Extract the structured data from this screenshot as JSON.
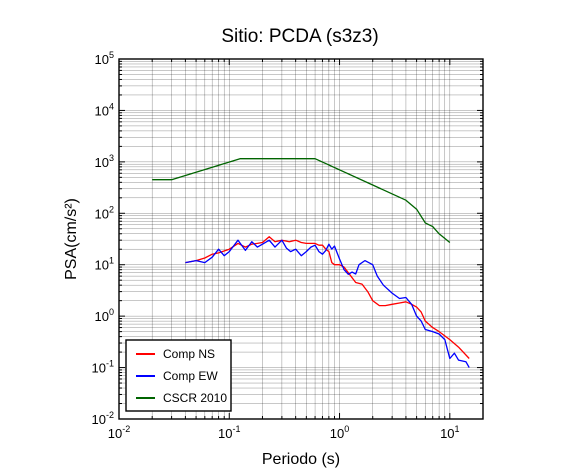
{
  "chart_data": {
    "type": "line",
    "title": "Sitio: PCDA (s3z3)",
    "xlabel": "Periodo (s)",
    "ylabel": "PSA(cm/s²)",
    "xscale": "log",
    "yscale": "log",
    "xlim": [
      0.01,
      20
    ],
    "ylim": [
      0.01,
      100000
    ],
    "grid": true,
    "legend_position": "bottom-left",
    "x_ticks": [
      {
        "base": "10",
        "exp": "-2"
      },
      {
        "base": "10",
        "exp": "-1"
      },
      {
        "base": "10",
        "exp": "0"
      },
      {
        "base": "10",
        "exp": "1"
      }
    ],
    "y_ticks": [
      {
        "base": "10",
        "exp": "-2"
      },
      {
        "base": "10",
        "exp": "-1"
      },
      {
        "base": "10",
        "exp": "0"
      },
      {
        "base": "10",
        "exp": "1"
      },
      {
        "base": "10",
        "exp": "2"
      },
      {
        "base": "10",
        "exp": "3"
      },
      {
        "base": "10",
        "exp": "4"
      },
      {
        "base": "10",
        "exp": "5"
      }
    ],
    "series": [
      {
        "name": "Comp NS",
        "color": "#ff0000",
        "points": [
          [
            0.04,
            11
          ],
          [
            0.05,
            12
          ],
          [
            0.06,
            13.5
          ],
          [
            0.07,
            16
          ],
          [
            0.08,
            17
          ],
          [
            0.1,
            20
          ],
          [
            0.12,
            26
          ],
          [
            0.14,
            22
          ],
          [
            0.16,
            25
          ],
          [
            0.18,
            26
          ],
          [
            0.2,
            27
          ],
          [
            0.23,
            35
          ],
          [
            0.26,
            28
          ],
          [
            0.3,
            30
          ],
          [
            0.35,
            28
          ],
          [
            0.4,
            30
          ],
          [
            0.45,
            27
          ],
          [
            0.5,
            26
          ],
          [
            0.55,
            26
          ],
          [
            0.6,
            26
          ],
          [
            0.65,
            24
          ],
          [
            0.7,
            24
          ],
          [
            0.75,
            20
          ],
          [
            0.8,
            18
          ],
          [
            0.85,
            11
          ],
          [
            0.9,
            10
          ],
          [
            1.0,
            10
          ],
          [
            1.1,
            9
          ],
          [
            1.2,
            7
          ],
          [
            1.4,
            4.5
          ],
          [
            1.6,
            4.2
          ],
          [
            1.8,
            3
          ],
          [
            2.0,
            2
          ],
          [
            2.3,
            1.6
          ],
          [
            2.6,
            1.6
          ],
          [
            3.0,
            1.7
          ],
          [
            3.5,
            1.8
          ],
          [
            4.0,
            1.9
          ],
          [
            4.5,
            1.7
          ],
          [
            5.0,
            1.5
          ],
          [
            5.5,
            1.2
          ],
          [
            6.0,
            0.8
          ],
          [
            7.0,
            0.6
          ],
          [
            8.0,
            0.5
          ],
          [
            10.0,
            0.35
          ],
          [
            12.0,
            0.25
          ],
          [
            15.0,
            0.15
          ]
        ]
      },
      {
        "name": "Comp EW",
        "color": "#0000ff",
        "points": [
          [
            0.04,
            11
          ],
          [
            0.05,
            12
          ],
          [
            0.06,
            11
          ],
          [
            0.07,
            14
          ],
          [
            0.08,
            20
          ],
          [
            0.09,
            15
          ],
          [
            0.1,
            18
          ],
          [
            0.12,
            30
          ],
          [
            0.14,
            19
          ],
          [
            0.16,
            28
          ],
          [
            0.18,
            22
          ],
          [
            0.2,
            25
          ],
          [
            0.23,
            30
          ],
          [
            0.26,
            22
          ],
          [
            0.3,
            30
          ],
          [
            0.33,
            21
          ],
          [
            0.36,
            18
          ],
          [
            0.4,
            20
          ],
          [
            0.45,
            15
          ],
          [
            0.5,
            18
          ],
          [
            0.55,
            22
          ],
          [
            0.6,
            24
          ],
          [
            0.65,
            18
          ],
          [
            0.7,
            16
          ],
          [
            0.75,
            19
          ],
          [
            0.8,
            25
          ],
          [
            0.85,
            20
          ],
          [
            0.9,
            23
          ],
          [
            1.0,
            13
          ],
          [
            1.1,
            8
          ],
          [
            1.2,
            6.5
          ],
          [
            1.3,
            7.2
          ],
          [
            1.4,
            6.6
          ],
          [
            1.5,
            10
          ],
          [
            1.7,
            12
          ],
          [
            2.0,
            10
          ],
          [
            2.2,
            6
          ],
          [
            2.5,
            4
          ],
          [
            3.0,
            2.8
          ],
          [
            3.5,
            2.2
          ],
          [
            4.0,
            2.3
          ],
          [
            4.5,
            1.7
          ],
          [
            5.0,
            1.0
          ],
          [
            5.5,
            0.8
          ],
          [
            6.0,
            0.55
          ],
          [
            7.0,
            0.5
          ],
          [
            8.0,
            0.45
          ],
          [
            9.0,
            0.35
          ],
          [
            10.0,
            0.15
          ],
          [
            11.0,
            0.19
          ],
          [
            12.0,
            0.14
          ],
          [
            14.0,
            0.13
          ],
          [
            15.0,
            0.1
          ]
        ]
      },
      {
        "name": "CSCR 2010",
        "color": "#006400",
        "points": [
          [
            0.02,
            450
          ],
          [
            0.03,
            450
          ],
          [
            0.125,
            1150
          ],
          [
            0.6,
            1150
          ],
          [
            4.0,
            180
          ],
          [
            5.0,
            120
          ],
          [
            6.0,
            65
          ],
          [
            7.0,
            55
          ],
          [
            8.0,
            40
          ],
          [
            10.0,
            27
          ]
        ]
      }
    ]
  }
}
